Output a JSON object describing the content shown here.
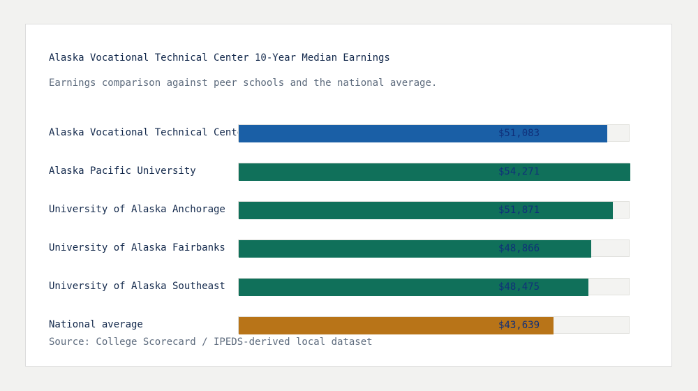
{
  "chart_data": {
    "type": "bar",
    "orientation": "horizontal",
    "title": "Alaska Vocational Technical Center 10-Year Median Earnings",
    "subtitle": "Earnings comparison against peer schools and the national average.",
    "categories": [
      "Alaska Vocational Technical Center",
      "Alaska Pacific University",
      "University of Alaska Anchorage",
      "University of Alaska Fairbanks",
      "University of Alaska Southeast",
      "National average"
    ],
    "values": [
      51083,
      54271,
      51871,
      48866,
      48475,
      43639
    ],
    "value_labels": [
      "$51,083",
      "$54,271",
      "$51,871",
      "$48,866",
      "$48,475",
      "$43,639"
    ],
    "xlim": [
      0,
      54271
    ],
    "grid": false,
    "source": "Source: College Scorecard / IPEDS-derived local dataset"
  },
  "colors": {
    "featured": "#1a5fa6",
    "peer": "#10705a",
    "national": "#b87418"
  },
  "bar_roles": [
    "featured",
    "peer",
    "peer",
    "peer",
    "peer",
    "national"
  ]
}
